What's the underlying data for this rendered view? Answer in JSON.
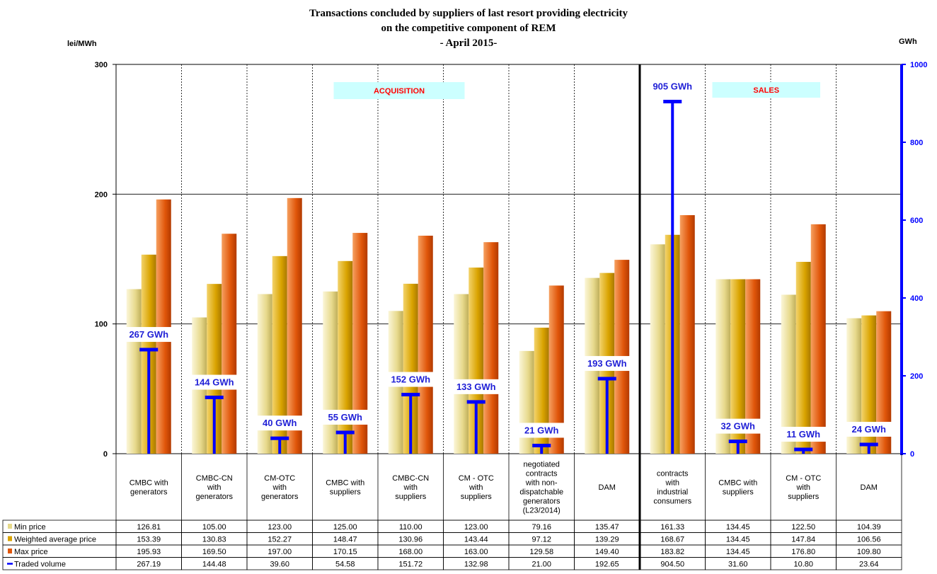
{
  "chart_data": {
    "type": "bar",
    "title_lines": [
      "Transactions concluded by suppliers of last resort providing electricity",
      "on the competitive component of REM",
      "- April 2015-"
    ],
    "left_unit": "lei/MWh",
    "right_unit": "GWh",
    "ylim": [
      0,
      300
    ],
    "y_ticks": [
      "0",
      "100",
      "200",
      "300"
    ],
    "y2lim": [
      0,
      1000
    ],
    "y2_ticks": [
      "0",
      "200",
      "400",
      "600",
      "800",
      "1000"
    ],
    "grid": true,
    "legend_position": "bottom-left table",
    "sections": {
      "acquisition": "ACQUISITION",
      "sales": "SALES"
    },
    "categories": [
      [
        "CMBC with",
        "generators"
      ],
      [
        "CMBC-CN",
        "with",
        "generators"
      ],
      [
        "CM-OTC",
        "with",
        "generators"
      ],
      [
        "CMBC with",
        "suppliers"
      ],
      [
        "CMBC-CN",
        "with",
        "suppliers"
      ],
      [
        "CM - OTC",
        "with",
        "suppliers"
      ],
      [
        "negotiated",
        "contracts",
        "with non-",
        "dispatchable",
        "generators",
        "(L23/2014)"
      ],
      [
        "DAM"
      ],
      [
        "contracts",
        "with",
        "industrial",
        "consumers"
      ],
      [
        "CMBC with",
        "suppliers"
      ],
      [
        "CM - OTC",
        "with",
        "suppliers"
      ],
      [
        "DAM"
      ]
    ],
    "series": [
      {
        "name": "Min price",
        "axis": "left",
        "values": [
          126.81,
          105.0,
          123.0,
          125.0,
          110.0,
          123.0,
          79.16,
          135.47,
          161.33,
          134.45,
          122.5,
          104.39
        ],
        "labels": [
          "126.81",
          "105.00",
          "123.00",
          "125.00",
          "110.00",
          "123.00",
          "79.16",
          "135.47",
          "161.33",
          "134.45",
          "122.50",
          "104.39"
        ]
      },
      {
        "name": "Weighted average price",
        "axis": "left",
        "values": [
          153.39,
          130.83,
          152.27,
          148.47,
          130.96,
          143.44,
          97.12,
          139.29,
          168.67,
          134.45,
          147.84,
          106.56
        ],
        "labels": [
          "153.39",
          "130.83",
          "152.27",
          "148.47",
          "130.96",
          "143.44",
          "97.12",
          "139.29",
          "168.67",
          "134.45",
          "147.84",
          "106.56"
        ]
      },
      {
        "name": "Max price",
        "axis": "left",
        "values": [
          195.93,
          169.5,
          197.0,
          170.15,
          168.0,
          163.0,
          129.58,
          149.4,
          183.82,
          134.45,
          176.8,
          109.8
        ],
        "labels": [
          "195.93",
          "169.50",
          "197.00",
          "170.15",
          "168.00",
          "163.00",
          "129.58",
          "149.40",
          "183.82",
          "134.45",
          "176.80",
          "109.80"
        ]
      },
      {
        "name": "Traded volume",
        "axis": "right",
        "values": [
          267.19,
          144.48,
          39.6,
          54.58,
          151.72,
          132.98,
          21.0,
          192.65,
          904.5,
          31.6,
          10.8,
          23.64
        ],
        "labels": [
          "267.19",
          "144.48",
          "39.60",
          "54.58",
          "151.72",
          "132.98",
          "21.00",
          "192.65",
          "904.50",
          "31.60",
          "10.80",
          "23.64"
        ]
      }
    ],
    "volume_labels": [
      "267 GWh",
      "144 GWh",
      "40 GWh",
      "55 GWh",
      "152 GWh",
      "133 GWh",
      "21 GWh",
      "193 GWh",
      "905 GWh",
      "32 GWh",
      "11 GWh",
      "24 GWh"
    ],
    "colors": {
      "min": "#e6d98a",
      "weighted": "#d9a300",
      "max": "#e0560a",
      "volume": "#0000ff",
      "label_box": "#ccffff"
    }
  }
}
